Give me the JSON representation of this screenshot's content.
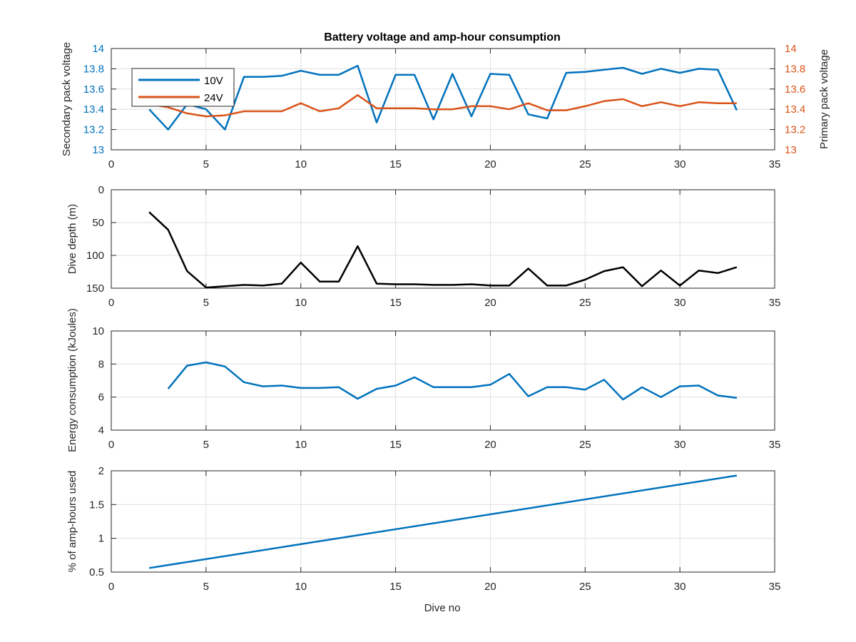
{
  "chart_data": [
    {
      "type": "line",
      "title": "Battery voltage and amp-hour consumption",
      "xlabel": "",
      "xlim": [
        0,
        35
      ],
      "xticks": [
        "0",
        "5",
        "10",
        "15",
        "20",
        "25",
        "30",
        "35"
      ],
      "ylabel_left": "Secondary pack voltage",
      "ylabel_right": "Primary pack voltage",
      "ylim": [
        13,
        14
      ],
      "yticks": [
        "13",
        "13.2",
        "13.4",
        "13.6",
        "13.8",
        "14"
      ],
      "grid": true,
      "legend_position": "top-left",
      "x": [
        2,
        3,
        4,
        5,
        6,
        7,
        8,
        9,
        10,
        11,
        12,
        13,
        14,
        15,
        16,
        17,
        18,
        19,
        20,
        21,
        22,
        23,
        24,
        25,
        26,
        27,
        28,
        29,
        30,
        31,
        32,
        33
      ],
      "series": [
        {
          "name": "10V",
          "axis": "left",
          "color": "#0072bd",
          "values": [
            13.4,
            13.2,
            13.45,
            13.4,
            13.2,
            13.72,
            13.72,
            13.73,
            13.78,
            13.74,
            13.74,
            13.83,
            13.27,
            13.74,
            13.74,
            13.3,
            13.75,
            13.33,
            13.75,
            13.74,
            13.35,
            13.31,
            13.76,
            13.77,
            13.79,
            13.81,
            13.75,
            13.8,
            13.76,
            13.8,
            13.79,
            13.39
          ]
        },
        {
          "name": "24V",
          "axis": "right",
          "color": "#d95319",
          "values": [
            13.45,
            13.42,
            13.36,
            13.33,
            13.34,
            13.38,
            13.38,
            13.38,
            13.46,
            13.38,
            13.41,
            13.54,
            13.41,
            13.41,
            13.41,
            13.4,
            13.4,
            13.43,
            13.43,
            13.4,
            13.46,
            13.39,
            13.39,
            13.43,
            13.48,
            13.5,
            13.43,
            13.47,
            13.43,
            13.47,
            13.46,
            13.46
          ]
        }
      ]
    },
    {
      "type": "line",
      "xlim": [
        0,
        35
      ],
      "xticks": [
        "0",
        "5",
        "10",
        "15",
        "20",
        "25",
        "30",
        "35"
      ],
      "ylabel": "Dive depth (m)",
      "ylim": [
        0,
        150
      ],
      "y_reversed": true,
      "yticks": [
        "0",
        "50",
        "100",
        "150"
      ],
      "grid": true,
      "x": [
        2,
        3,
        4,
        5,
        6,
        7,
        8,
        9,
        10,
        11,
        12,
        13,
        14,
        15,
        16,
        17,
        18,
        19,
        20,
        21,
        22,
        23,
        24,
        25,
        26,
        27,
        28,
        29,
        30,
        31,
        32,
        33
      ],
      "series": [
        {
          "color": "#000000",
          "values": [
            34,
            61,
            124,
            149,
            147,
            145,
            146,
            143,
            111,
            140,
            140,
            86,
            143,
            144,
            144,
            145,
            145,
            144,
            146,
            146,
            120,
            146,
            146,
            137,
            124,
            118,
            147,
            123,
            146,
            123,
            127,
            118
          ]
        }
      ]
    },
    {
      "type": "line",
      "xlim": [
        0,
        35
      ],
      "xticks": [
        "0",
        "5",
        "10",
        "15",
        "20",
        "25",
        "30",
        "35"
      ],
      "ylabel": "Energy consumption (kJoules)",
      "ylim": [
        4,
        10
      ],
      "yticks": [
        "4",
        "6",
        "8",
        "10"
      ],
      "grid": true,
      "x": [
        3,
        4,
        5,
        6,
        7,
        8,
        9,
        10,
        11,
        12,
        13,
        14,
        15,
        16,
        17,
        18,
        19,
        20,
        21,
        22,
        23,
        24,
        25,
        26,
        27,
        28,
        29,
        30,
        31,
        32,
        33
      ],
      "series": [
        {
          "color": "#0072bd",
          "values": [
            6.5,
            7.9,
            8.1,
            7.85,
            6.9,
            6.65,
            6.7,
            6.55,
            6.55,
            6.6,
            5.9,
            6.5,
            6.7,
            7.2,
            6.6,
            6.6,
            6.6,
            6.75,
            7.4,
            6.05,
            6.6,
            6.6,
            6.45,
            7.05,
            5.85,
            6.6,
            6.0,
            6.65,
            6.7,
            6.1,
            5.95
          ]
        }
      ]
    },
    {
      "type": "line",
      "xlim": [
        0,
        35
      ],
      "xticks": [
        "0",
        "5",
        "10",
        "15",
        "20",
        "25",
        "30",
        "35"
      ],
      "xlabel": "Dive no",
      "ylabel": "% of amp-hours used",
      "ylim": [
        0.5,
        2
      ],
      "yticks": [
        "0.5",
        "1",
        "1.5",
        "2"
      ],
      "grid": true,
      "x": [
        2,
        33
      ],
      "series": [
        {
          "color": "#0072bd",
          "values": [
            0.56,
            1.93
          ]
        }
      ]
    }
  ]
}
